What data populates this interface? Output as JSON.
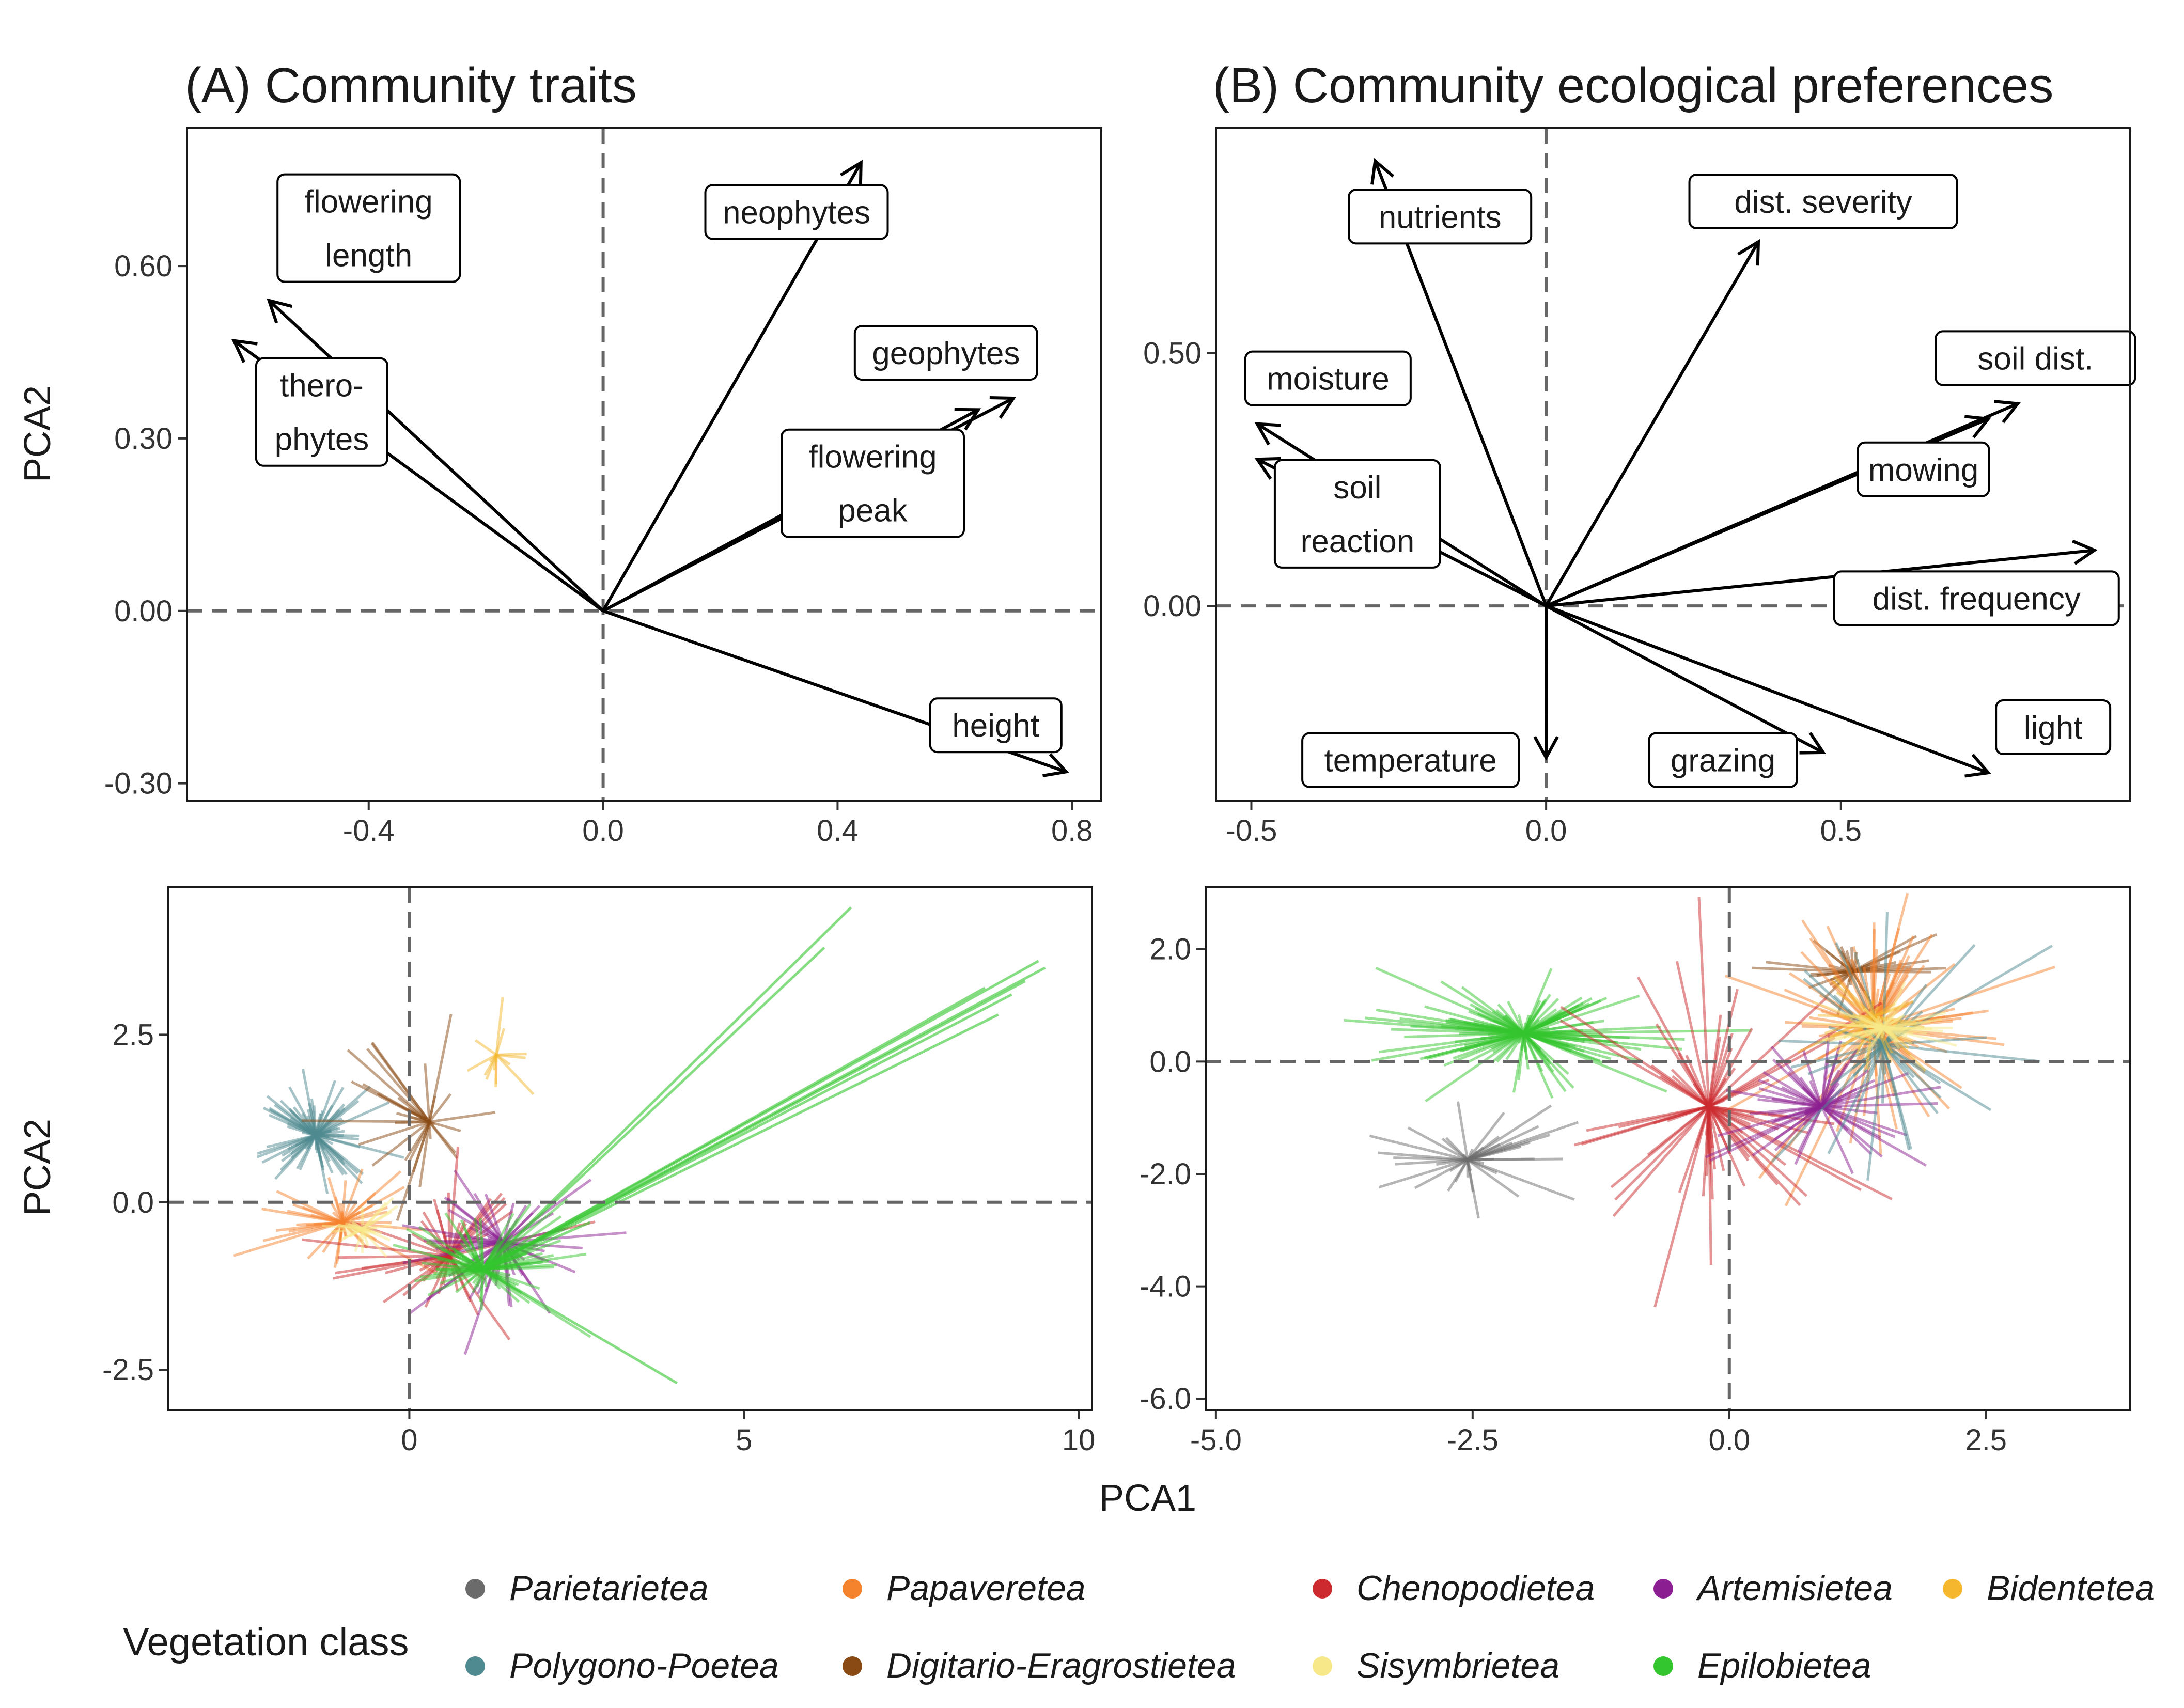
{
  "figure": {
    "ylabel_top": "PCA2",
    "ylabel_bottom": "PCA2",
    "xlabel_bottom": "PCA1"
  },
  "chart_data": [
    {
      "id": "A_top",
      "type": "biplot-vectors",
      "title": "(A) Community traits",
      "xlabel": "",
      "ylabel": "PCA2",
      "xlim": [
        -0.71,
        0.85
      ],
      "ylim": [
        -0.33,
        0.84
      ],
      "xticks": [
        -0.4,
        0.0,
        0.4,
        0.8
      ],
      "xtick_labels": [
        "-0.4",
        "0.0",
        "0.4",
        "0.8"
      ],
      "yticks": [
        -0.3,
        0.0,
        0.3,
        0.6
      ],
      "ytick_labels": [
        "-0.30",
        "0.00",
        "0.30",
        "0.60"
      ],
      "vectors": [
        {
          "name": "flowering length",
          "lines": [
            "flowering",
            "length"
          ],
          "x": -0.57,
          "y": 0.54,
          "lx": -0.4,
          "ly": 0.666
        },
        {
          "name": "therophytes",
          "lines": [
            "thero-",
            "phytes"
          ],
          "x": -0.63,
          "y": 0.47,
          "lx": -0.48,
          "ly": 0.346
        },
        {
          "name": "neophytes",
          "lines": [
            "neophytes"
          ],
          "x": 0.44,
          "y": 0.78,
          "lx": 0.33,
          "ly": 0.694
        },
        {
          "name": "geophytes",
          "lines": [
            "geophytes"
          ],
          "x": 0.7,
          "y": 0.37,
          "lx": 0.585,
          "ly": 0.449
        },
        {
          "name": "flowering peak",
          "lines": [
            "flowering",
            "peak"
          ],
          "x": 0.64,
          "y": 0.35,
          "lx": 0.46,
          "ly": 0.222
        },
        {
          "name": "height",
          "lines": [
            "height"
          ],
          "x": 0.79,
          "y": -0.28,
          "lx": 0.67,
          "ly": -0.199
        }
      ]
    },
    {
      "id": "B_top",
      "type": "biplot-vectors",
      "title": "(B) Community ecological preferences",
      "xlabel": "",
      "ylabel": "",
      "xlim": [
        -0.56,
        0.99
      ],
      "ylim": [
        -0.385,
        0.945
      ],
      "xticks": [
        -0.5,
        0.0,
        0.5
      ],
      "xtick_labels": [
        "-0.5",
        "0.0",
        "0.5"
      ],
      "yticks": [
        0.0,
        0.5
      ],
      "ytick_labels": [
        "0.00",
        "0.50"
      ],
      "vectors": [
        {
          "name": "nutrients",
          "lines": [
            "nutrients"
          ],
          "x": -0.29,
          "y": 0.88,
          "lx": -0.18,
          "ly": 0.77
        },
        {
          "name": "dist. severity",
          "lines": [
            "dist. severity"
          ],
          "x": 0.36,
          "y": 0.72,
          "lx": 0.47,
          "ly": 0.8
        },
        {
          "name": "moisture",
          "lines": [
            "moisture"
          ],
          "x": -0.49,
          "y": 0.36,
          "lx": -0.37,
          "ly": 0.45
        },
        {
          "name": "soil reaction",
          "lines": [
            "soil",
            "reaction"
          ],
          "x": -0.49,
          "y": 0.29,
          "lx": -0.32,
          "ly": 0.182
        },
        {
          "name": "soil dist.",
          "lines": [
            "soil dist."
          ],
          "x": 0.8,
          "y": 0.4,
          "lx": 0.83,
          "ly": 0.49
        },
        {
          "name": "mowing",
          "lines": [
            "mowing"
          ],
          "x": 0.75,
          "y": 0.37,
          "lx": 0.64,
          "ly": 0.27
        },
        {
          "name": "dist. frequency",
          "lines": [
            "dist. frequency"
          ],
          "x": 0.93,
          "y": 0.11,
          "lx": 0.73,
          "ly": 0.015
        },
        {
          "name": "temperature",
          "lines": [
            "temperature"
          ],
          "x": 0.0,
          "y": -0.3,
          "lx": -0.23,
          "ly": -0.305
        },
        {
          "name": "grazing",
          "lines": [
            "grazing"
          ],
          "x": 0.47,
          "y": -0.29,
          "lx": 0.3,
          "ly": -0.305
        },
        {
          "name": "light",
          "lines": [
            "light"
          ],
          "x": 0.75,
          "y": -0.33,
          "lx": 0.86,
          "ly": -0.24
        }
      ]
    },
    {
      "id": "A_bottom",
      "type": "scatter-spider",
      "title": "",
      "xlabel": "",
      "ylabel": "PCA2",
      "xlim": [
        -3.6,
        10.2
      ],
      "ylim": [
        -3.1,
        4.7
      ],
      "xticks": [
        0,
        5,
        10
      ],
      "xtick_labels": [
        "0",
        "5",
        "10"
      ],
      "yticks": [
        -2.5,
        0.0,
        2.5
      ],
      "ytick_labels": [
        "-2.5",
        "0.0",
        "2.5"
      ],
      "groups": [
        {
          "class": "Polygono-Poetea",
          "color": "#4e8a8f",
          "center": [
            -1.4,
            1.0
          ],
          "n": 90,
          "spread": [
            0.8,
            0.7
          ]
        },
        {
          "class": "Digitario-Eragrostietea",
          "color": "#8a4a14",
          "center": [
            0.3,
            1.2
          ],
          "n": 30,
          "spread": [
            1.2,
            1.4
          ]
        },
        {
          "class": "Bidentetea",
          "color": "#f4b72e",
          "center": [
            1.3,
            2.2
          ],
          "n": 14,
          "spread": [
            0.6,
            0.8
          ]
        },
        {
          "class": "Papaveretea",
          "color": "#f5822d",
          "center": [
            -1.0,
            -0.3
          ],
          "n": 50,
          "spread": [
            1.0,
            0.8
          ]
        },
        {
          "class": "Chenopodietea",
          "color": "#cc2a2e",
          "center": [
            0.6,
            -0.8
          ],
          "n": 50,
          "spread": [
            1.5,
            1.0
          ]
        },
        {
          "class": "Artemisietea",
          "color": "#8b1f92",
          "center": [
            1.4,
            -0.6
          ],
          "n": 60,
          "spread": [
            1.2,
            1.0
          ]
        },
        {
          "class": "Sisymbrietea",
          "color": "#f7e98a",
          "center": [
            -0.7,
            -0.4
          ],
          "n": 30,
          "spread": [
            0.5,
            0.4
          ]
        },
        {
          "class": "Epilobietea",
          "color": "#34c62e",
          "center": [
            1.1,
            -1.0
          ],
          "n": 90,
          "spread": [
            1.2,
            0.9
          ]
        }
      ]
    },
    {
      "id": "B_bottom",
      "type": "scatter-spider",
      "title": "",
      "xlabel": "PCA1",
      "ylabel": "",
      "xlim": [
        -5.1,
        3.9
      ],
      "ylim": [
        -6.2,
        3.1
      ],
      "xticks": [
        -5.0,
        -2.5,
        0.0,
        2.5
      ],
      "xtick_labels": [
        "-5.0",
        "-2.5",
        "0.0",
        "2.5"
      ],
      "yticks": [
        -6.0,
        -4.0,
        -2.0,
        0.0,
        2.0
      ],
      "ytick_labels": [
        "-6.0",
        "-4.0",
        "-2.0",
        "0.0",
        "2.0"
      ],
      "groups": [
        {
          "class": "Parietarietea",
          "color": "#6b6b6b",
          "center": [
            -2.55,
            -1.75
          ],
          "n": 40,
          "spread": [
            1.0,
            0.8
          ]
        },
        {
          "class": "Epilobietea",
          "color": "#34c62e",
          "center": [
            -2.0,
            0.5
          ],
          "n": 130,
          "spread": [
            1.4,
            0.8
          ]
        },
        {
          "class": "Digitario-Eragrostietea",
          "color": "#8a4a14",
          "center": [
            1.2,
            1.6
          ],
          "n": 40,
          "spread": [
            0.8,
            0.6
          ]
        },
        {
          "class": "Papaveretea",
          "color": "#f5822d",
          "center": [
            1.4,
            0.6
          ],
          "n": 90,
          "spread": [
            1.1,
            2.5
          ]
        },
        {
          "class": "Chenopodietea",
          "color": "#cc2a2e",
          "center": [
            -0.2,
            -0.8
          ],
          "n": 70,
          "spread": [
            1.5,
            2.6
          ]
        },
        {
          "class": "Artemisietea",
          "color": "#8b1f92",
          "center": [
            0.9,
            -0.8
          ],
          "n": 60,
          "spread": [
            0.9,
            1.4
          ]
        },
        {
          "class": "Polygono-Poetea",
          "color": "#4e8a8f",
          "center": [
            1.5,
            0.3
          ],
          "n": 40,
          "spread": [
            1.2,
            1.8
          ]
        },
        {
          "class": "Bidentetea",
          "color": "#f4b72e",
          "center": [
            1.4,
            0.8
          ],
          "n": 30,
          "spread": [
            0.8,
            0.8
          ]
        },
        {
          "class": "Sisymbrietea",
          "color": "#f7e98a",
          "center": [
            1.5,
            0.6
          ],
          "n": 60,
          "spread": [
            0.6,
            0.5
          ]
        }
      ]
    }
  ],
  "legend": {
    "title": "Vegetation class",
    "items": [
      {
        "label": "Parietarietea",
        "color": "#6b6b6b"
      },
      {
        "label": "Polygono-Poetea",
        "color": "#4e8a8f"
      },
      {
        "label": "Papaveretea",
        "color": "#f5822d"
      },
      {
        "label": "Digitario-Eragrostietea",
        "color": "#8a4a14"
      },
      {
        "label": "Chenopodietea",
        "color": "#cc2a2e"
      },
      {
        "label": "Sisymbrietea",
        "color": "#f7e98a"
      },
      {
        "label": "Artemisietea",
        "color": "#8b1f92"
      },
      {
        "label": "Epilobietea",
        "color": "#34c62e"
      },
      {
        "label": "Bidentetea",
        "color": "#f4b72e"
      }
    ]
  }
}
